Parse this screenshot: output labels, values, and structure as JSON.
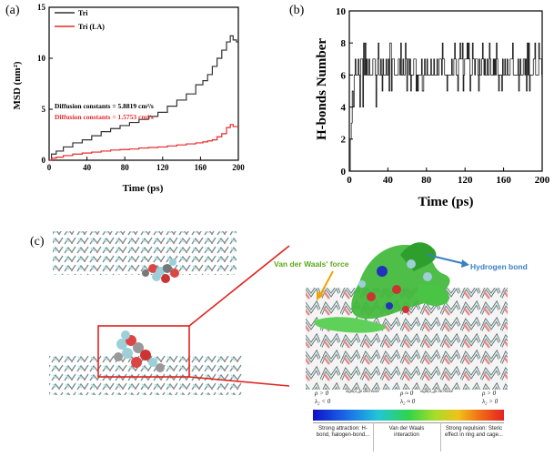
{
  "panels": {
    "a": "(a)",
    "b": "(b)",
    "c": "(c)"
  },
  "chart_data": [
    {
      "type": "line",
      "title": "",
      "xlabel": "Time (ps)",
      "ylabel": "MSD (nm²)",
      "xlim": [
        0,
        200
      ],
      "ylim": [
        0,
        15
      ],
      "xticks": [
        "0",
        "40",
        "80",
        "120",
        "160",
        "200"
      ],
      "yticks": [
        "0",
        "5",
        "10",
        "15"
      ],
      "legend": [
        "Tri",
        "Tri (LA)"
      ],
      "annotations": [
        "Diffusion constants = 5.8819 cm²/s",
        "Diffusion constants = 1.5753 cm²/s"
      ],
      "series": [
        {
          "name": "Tri",
          "color": "#333333",
          "x": [
            0,
            5,
            10,
            20,
            30,
            40,
            50,
            60,
            70,
            80,
            90,
            100,
            110,
            120,
            130,
            140,
            150,
            160,
            165,
            170,
            175,
            180,
            185,
            190,
            193,
            196,
            200
          ],
          "y": [
            0,
            0.6,
            0.9,
            1.3,
            1.7,
            2.0,
            2.4,
            2.8,
            3.1,
            3.4,
            3.7,
            4.0,
            4.3,
            4.7,
            5.3,
            5.9,
            6.5,
            7.4,
            7.8,
            8.4,
            9.2,
            10.0,
            10.8,
            11.6,
            12.2,
            11.8,
            11.6
          ]
        },
        {
          "name": "Tri (LA)",
          "color": "#e8292a",
          "x": [
            0,
            5,
            10,
            20,
            30,
            40,
            50,
            60,
            70,
            80,
            90,
            100,
            110,
            120,
            130,
            140,
            150,
            160,
            165,
            170,
            175,
            180,
            185,
            190,
            193,
            196,
            200
          ],
          "y": [
            0,
            0.2,
            0.3,
            0.45,
            0.6,
            0.7,
            0.8,
            0.9,
            1.0,
            1.05,
            1.1,
            1.2,
            1.25,
            1.3,
            1.4,
            1.5,
            1.6,
            1.7,
            1.8,
            1.9,
            2.0,
            2.3,
            2.6,
            3.2,
            3.5,
            3.3,
            3.3
          ]
        }
      ]
    },
    {
      "type": "line",
      "title": "",
      "xlabel": "Time (ps)",
      "ylabel": "H-bonds Number",
      "xlim": [
        0,
        200
      ],
      "ylim": [
        0,
        10
      ],
      "xticks": [
        "0",
        "40",
        "80",
        "120",
        "160",
        "200"
      ],
      "yticks": [
        "0",
        "2",
        "4",
        "6",
        "8",
        "10"
      ],
      "series": [
        {
          "name": "H-bonds",
          "color": "#000000",
          "values_description_free": true,
          "pattern": {
            "start_ramp": [
              [
                0,
                0
              ],
              [
                2,
                3
              ],
              [
                4,
                5
              ]
            ],
            "range": [
              5,
              8
            ],
            "base": 6
          }
        }
      ]
    }
  ],
  "figure_c": {
    "van_der_waals_label": "Van der Waals' force",
    "hydrogen_bond_label": "Hydrogen bond",
    "colorbar": {
      "top_rho1": "ρ > 0",
      "top_sign_decrease": "sign(λ₂)ρ decrease",
      "top_rho2": "ρ ≈ 0",
      "top_sign_increase": "sign(λ₂)ρ increase",
      "top_rho3": "ρ > 0",
      "bottom_l1": "λ₂ < 0",
      "bottom_l2": "λ₂ ≈ 0",
      "bottom_l3": "λ₂ > 0",
      "desc_left": "Strong attraction: H-bond, halogen-bond...",
      "desc_mid": "Van der Waals interaction",
      "desc_right": "Strong repulsion: Steric effect in ring and cage..."
    }
  }
}
